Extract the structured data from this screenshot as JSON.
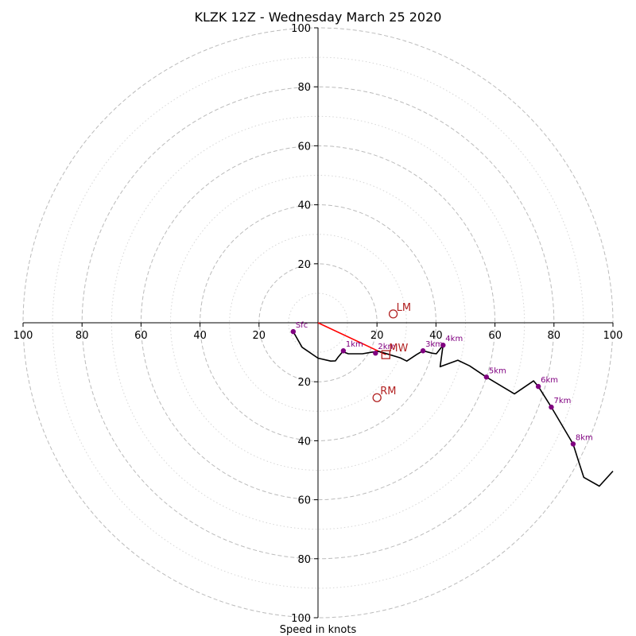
{
  "chart_data": {
    "type": "scatter",
    "subtype": "hodograph",
    "title": "KLZK 12Z - Wednesday March 25 2020",
    "xlabel": "Speed in knots",
    "xlim": [
      -100,
      100
    ],
    "ylim": [
      -100,
      100
    ],
    "ring_major": [
      20,
      40,
      60,
      80,
      100
    ],
    "ring_minor": [
      10,
      30,
      50,
      70,
      90
    ],
    "x_ticks": [
      "100",
      "80",
      "60",
      "40",
      "20",
      "",
      "20",
      "40",
      "60",
      "80",
      "100"
    ],
    "x_tick_values": [
      -100,
      -80,
      -60,
      -40,
      -20,
      0,
      20,
      40,
      60,
      80,
      100
    ],
    "y_ticks": [
      "100",
      "80",
      "60",
      "40",
      "20",
      "",
      "20",
      "40",
      "60",
      "80",
      "100"
    ],
    "y_tick_values": [
      100,
      80,
      60,
      40,
      20,
      0,
      -20,
      -40,
      -60,
      -80,
      -100
    ],
    "grid": true,
    "series": [
      {
        "color": "#000000",
        "points": [
          [
            -8.4,
            -3
          ],
          [
            -5.4,
            -8.3
          ],
          [
            0,
            -12
          ],
          [
            4.3,
            -13
          ],
          [
            5.9,
            -12.9
          ],
          [
            6.7,
            -11.8
          ],
          [
            8.6,
            -9.5
          ],
          [
            9.2,
            -10.1
          ],
          [
            10.3,
            -10.5
          ],
          [
            13.7,
            -10.5
          ],
          [
            15.1,
            -10.5
          ],
          [
            18.1,
            -10
          ],
          [
            20.6,
            -9.7
          ],
          [
            22.6,
            -10.3
          ],
          [
            27.9,
            -11.9
          ],
          [
            30.1,
            -13
          ],
          [
            33.4,
            -10.8
          ],
          [
            35.6,
            -9.5
          ],
          [
            38.6,
            -10.3
          ],
          [
            40.1,
            -10.5
          ],
          [
            42.4,
            -7.6
          ],
          [
            41.4,
            -14.9
          ],
          [
            47.4,
            -12.7
          ],
          [
            51.4,
            -14.6
          ],
          [
            57.1,
            -18.4
          ],
          [
            66.6,
            -24.1
          ],
          [
            73.1,
            -19.7
          ],
          [
            74.7,
            -21.6
          ],
          [
            79.1,
            -28.6
          ],
          [
            86.5,
            -41.1
          ],
          [
            88.2,
            -46.5
          ],
          [
            90.1,
            -52.4
          ],
          [
            95.4,
            -55.4
          ],
          [
            100,
            -50.3
          ]
        ]
      }
    ],
    "height_markers": [
      {
        "label": "Sfc",
        "u": -8.4,
        "v": -3
      },
      {
        "label": "1km",
        "u": 8.6,
        "v": -9.5
      },
      {
        "label": "2km",
        "u": 19.5,
        "v": -10.3
      },
      {
        "label": "3km",
        "u": 35.6,
        "v": -9.5
      },
      {
        "label": "4km",
        "u": 42.4,
        "v": -7.6
      },
      {
        "label": "5km",
        "u": 57.1,
        "v": -18.4
      },
      {
        "label": "6km",
        "u": 74.7,
        "v": -21.6
      },
      {
        "label": "7km",
        "u": 79.1,
        "v": -28.6
      },
      {
        "label": "8km",
        "u": 86.5,
        "v": -41.1
      }
    ],
    "shear_vector": {
      "from": [
        0,
        0
      ],
      "to": [
        23,
        -10.8
      ],
      "color": "#ff0000"
    },
    "storm_motions": [
      {
        "label": "LM",
        "u": 25.5,
        "v": 3,
        "marker": "circle"
      },
      {
        "label": "MW",
        "u": 23,
        "v": -10.8,
        "marker": "square"
      },
      {
        "label": "RM",
        "u": 20,
        "v": -25.4,
        "marker": "circle"
      }
    ],
    "colors": {
      "hodograph": "#000000",
      "height_markers": "#800080",
      "storm_motion": "#b22222",
      "shear": "#ff0000",
      "grid": "#bbbbbb"
    }
  }
}
